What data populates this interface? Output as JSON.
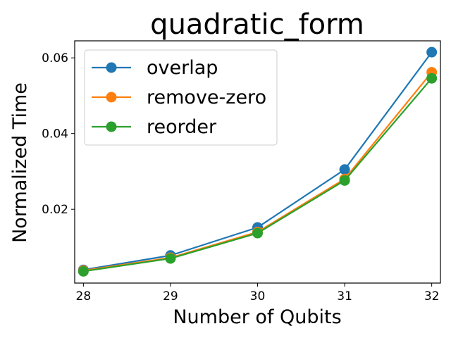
{
  "chart_data": {
    "type": "line",
    "title": "quadratic_form",
    "xlabel": "Number of Qubits",
    "ylabel": "Normalized Time",
    "x": [
      28,
      29,
      30,
      31,
      32
    ],
    "xlim": [
      27.9,
      32.1
    ],
    "ylim": [
      0.0005,
      0.0645
    ],
    "yticks": [
      0.02,
      0.04,
      0.06
    ],
    "ytick_labels": [
      "0.02",
      "0.04",
      "0.06"
    ],
    "xtick_labels": [
      "28",
      "29",
      "30",
      "31",
      "32"
    ],
    "grid": false,
    "legend_position": "top-left",
    "series": [
      {
        "name": "overlap",
        "color": "#1f77b4",
        "values": [
          0.004,
          0.0078,
          0.0152,
          0.0305,
          0.0615
        ]
      },
      {
        "name": "remove-zero",
        "color": "#ff7f0e",
        "values": [
          0.0038,
          0.0072,
          0.014,
          0.028,
          0.0562
        ]
      },
      {
        "name": "reorder",
        "color": "#2ca02c",
        "values": [
          0.0036,
          0.007,
          0.0137,
          0.0276,
          0.0546
        ]
      }
    ]
  }
}
